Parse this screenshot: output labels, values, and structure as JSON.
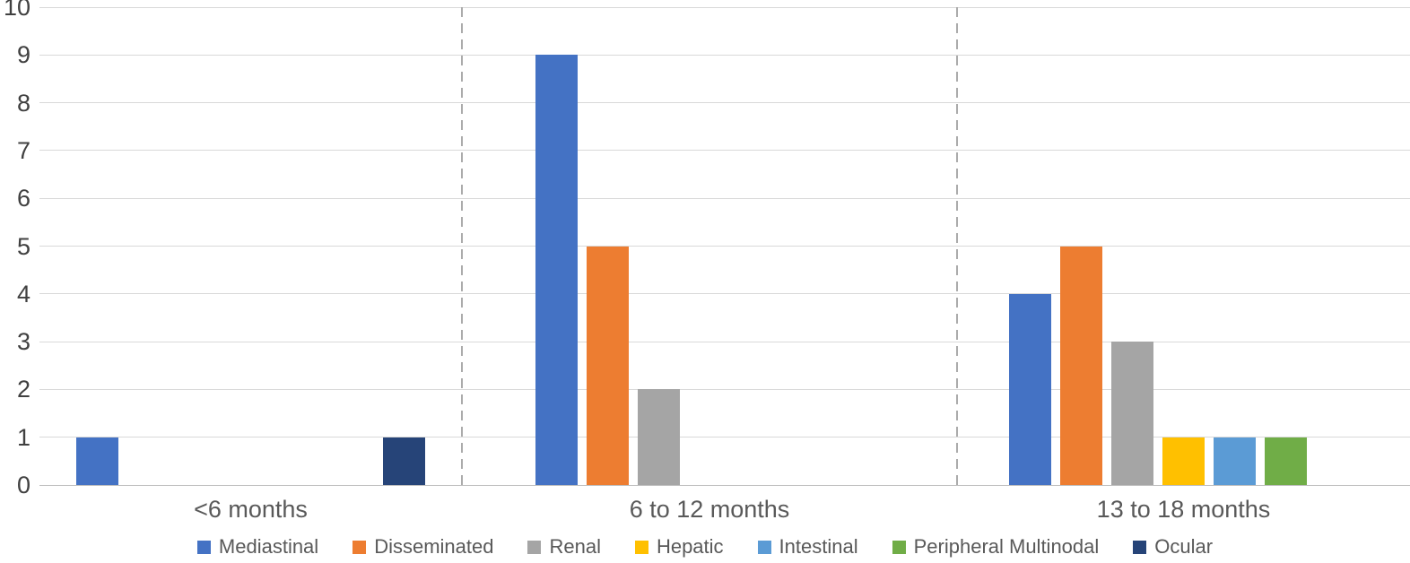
{
  "chart_data": {
    "type": "bar",
    "title": "",
    "xlabel": "",
    "ylabel": "",
    "categories": [
      "<6 months",
      "6 to 12 months",
      "13 to 18 months"
    ],
    "series": [
      {
        "name": "Mediastinal",
        "color": "#4472c4",
        "values": [
          1,
          9,
          4
        ]
      },
      {
        "name": "Disseminated",
        "color": "#ed7d31",
        "values": [
          0,
          5,
          5
        ]
      },
      {
        "name": "Renal",
        "color": "#a5a5a5",
        "values": [
          0,
          2,
          3
        ]
      },
      {
        "name": "Hepatic",
        "color": "#ffc000",
        "values": [
          0,
          0,
          1
        ]
      },
      {
        "name": "Intestinal",
        "color": "#5b9bd5",
        "values": [
          0,
          0,
          1
        ]
      },
      {
        "name": "Peripheral Multinodal",
        "color": "#70ad47",
        "values": [
          0,
          0,
          1
        ]
      },
      {
        "name": "Ocular",
        "color": "#264478",
        "values": [
          1,
          0,
          0
        ]
      }
    ],
    "ylim": [
      0,
      10
    ],
    "yticks": [
      0,
      1,
      2,
      3,
      4,
      5,
      6,
      7,
      8,
      9,
      10
    ],
    "grid": "horizontal gridlines on, dashed vertical separators between categories",
    "legend_position": "bottom",
    "colors": {
      "gridline": "#d9d9d9",
      "axis_baseline": "#bfbfbf",
      "separator": "#ababab",
      "tick_text": "#404040",
      "label_text": "#595959",
      "background": "#ffffff"
    }
  }
}
